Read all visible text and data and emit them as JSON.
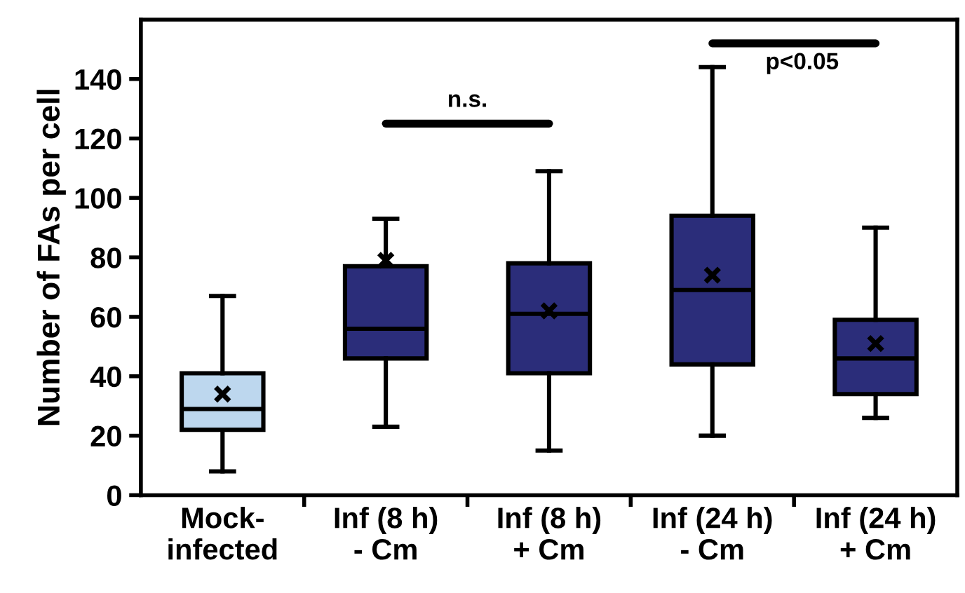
{
  "chart_data": {
    "type": "box",
    "ylabel": "Number of FAs per cell",
    "categories": [
      "Mock-\ninfected",
      "Inf (8 h)\n- Cm",
      "Inf (8 h)\n+ Cm",
      "Inf (24 h)\n- Cm",
      "Inf (24 h)\n+ Cm"
    ],
    "boxes": [
      {
        "low": 8,
        "q1": 22,
        "median": 29,
        "q3": 41,
        "high": 67,
        "mean": 34
      },
      {
        "low": 23,
        "q1": 46,
        "median": 56,
        "q3": 77,
        "high": 93,
        "mean": 79
      },
      {
        "low": 15,
        "q1": 41,
        "median": 61,
        "q3": 78,
        "high": 109,
        "mean": 62
      },
      {
        "low": 20,
        "q1": 44,
        "median": 69,
        "q3": 94,
        "high": 144,
        "mean": 74
      },
      {
        "low": 26,
        "q1": 34,
        "median": 46,
        "q3": 59,
        "high": 90,
        "mean": 51
      }
    ],
    "colors": [
      "#bdd7ee",
      "#2b2d7a",
      "#2b2d7a",
      "#2b2d7a",
      "#2b2d7a"
    ],
    "ylim": [
      0,
      160
    ],
    "yticks": [
      0,
      20,
      40,
      60,
      80,
      100,
      120,
      140
    ],
    "marker": "cross",
    "grid": false,
    "annotations": [
      "n.s.",
      "p<0.05"
    ]
  }
}
